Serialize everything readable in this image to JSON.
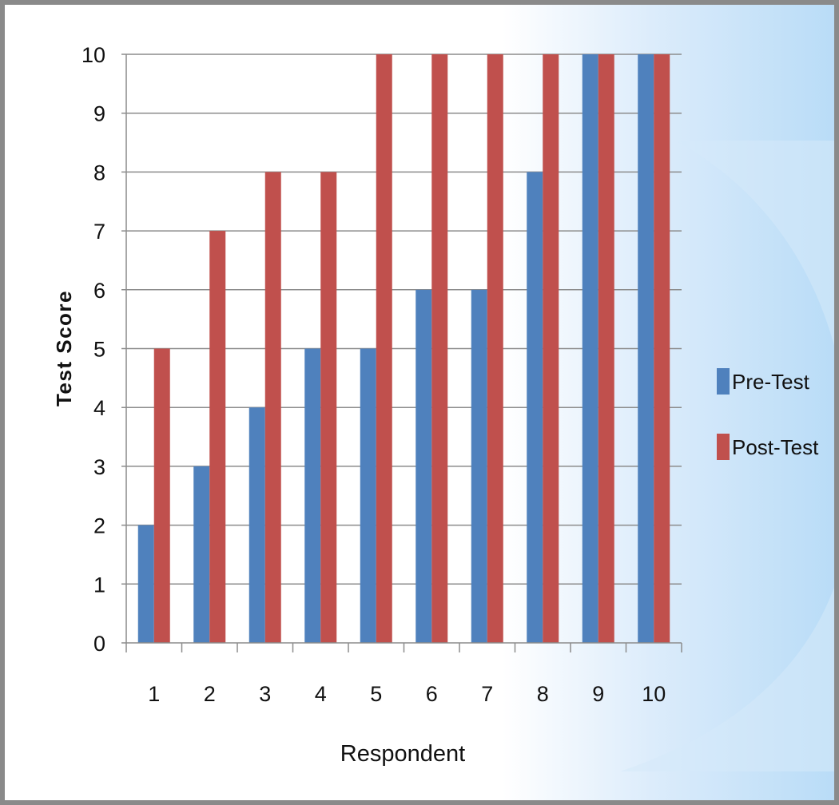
{
  "chart_data": {
    "type": "bar",
    "title": "",
    "xlabel": "Respondent",
    "ylabel": "Test Score",
    "categories": [
      "1",
      "2",
      "3",
      "4",
      "5",
      "6",
      "7",
      "8",
      "9",
      "10"
    ],
    "series": [
      {
        "name": "Pre-Test",
        "color": "#4f81bd",
        "values": [
          2,
          3,
          4,
          5,
          5,
          6,
          6,
          8,
          10,
          10
        ]
      },
      {
        "name": "Post-Test",
        "color": "#c0504d",
        "values": [
          5,
          7,
          8,
          8,
          10,
          10,
          10,
          10,
          10,
          10
        ]
      }
    ],
    "ylim": [
      0,
      10
    ],
    "yticks": [
      "0",
      "1",
      "2",
      "3",
      "4",
      "5",
      "6",
      "7",
      "8",
      "9",
      "10"
    ],
    "grid": true,
    "legend": "right"
  }
}
